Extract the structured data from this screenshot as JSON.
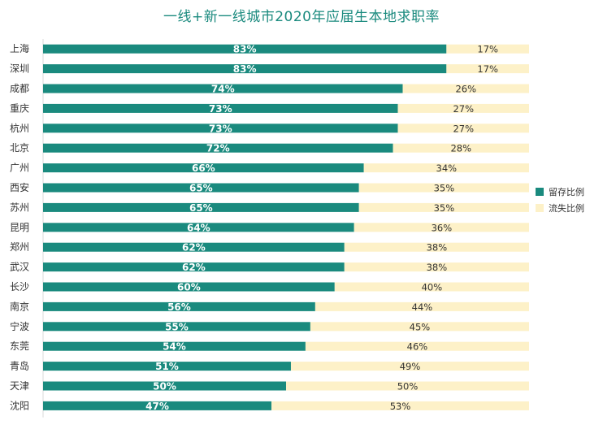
{
  "chart_data": {
    "type": "bar",
    "orientation": "horizontal",
    "stacked": true,
    "title": "一线+新一线城市2020年应届生本地求职率",
    "categories": [
      "上海",
      "深圳",
      "成都",
      "重庆",
      "杭州",
      "北京",
      "广州",
      "西安",
      "苏州",
      "昆明",
      "郑州",
      "武汉",
      "长沙",
      "南京",
      "宁波",
      "东莞",
      "青岛",
      "天津",
      "沈阳"
    ],
    "series": [
      {
        "name": "留存比例",
        "color": "#1a8a7e",
        "values": [
          83,
          83,
          74,
          73,
          73,
          72,
          66,
          65,
          65,
          64,
          62,
          62,
          60,
          56,
          55,
          54,
          51,
          50,
          47
        ]
      },
      {
        "name": "流失比例",
        "color": "#fdf1c8",
        "values": [
          17,
          17,
          26,
          27,
          27,
          28,
          34,
          35,
          35,
          36,
          38,
          38,
          40,
          44,
          45,
          46,
          49,
          50,
          53
        ]
      }
    ],
    "value_format": "{v}%",
    "xlim": [
      0,
      100
    ],
    "legend_position": "right"
  }
}
